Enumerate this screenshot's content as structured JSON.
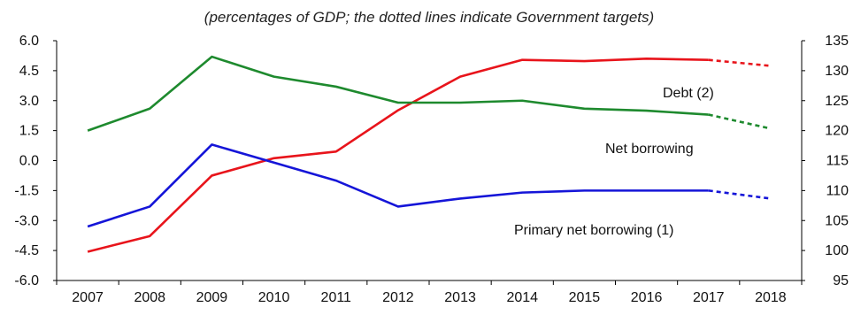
{
  "chart_data": {
    "type": "line",
    "subtitle": "(percentages of GDP; the dotted lines indicate Government targets)",
    "categories": [
      "2007",
      "2008",
      "2009",
      "2010",
      "2011",
      "2012",
      "2013",
      "2014",
      "2015",
      "2016",
      "2017",
      "2018"
    ],
    "y_left": {
      "min": -6.0,
      "max": 6.0,
      "ticks": [
        "6.0",
        "4.5",
        "3.0",
        "1.5",
        "0.0",
        "-1.5",
        "-3.0",
        "-4.5",
        "-6.0"
      ]
    },
    "y_right": {
      "min": 95,
      "max": 135,
      "ticks": [
        "135",
        "130",
        "125",
        "120",
        "115",
        "110",
        "105",
        "100",
        "95"
      ]
    },
    "target_from": "2017",
    "grid": false,
    "series": [
      {
        "name": "Debt (2)",
        "axis": "right",
        "color": "#e8141b",
        "values": [
          99.8,
          102.4,
          112.5,
          115.4,
          116.5,
          123.4,
          129.0,
          131.8,
          131.6,
          132.0,
          131.8,
          130.8
        ]
      },
      {
        "name": "Net borrowing",
        "axis": "left",
        "color": "#1e8a2e",
        "values": [
          1.5,
          2.6,
          5.2,
          4.2,
          3.7,
          2.9,
          2.9,
          3.0,
          2.6,
          2.5,
          2.3,
          1.6
        ]
      },
      {
        "name": "Primary net borrowing (1)",
        "axis": "left",
        "color": "#1515d8",
        "values": [
          -3.3,
          -2.3,
          0.8,
          -0.1,
          -1.0,
          -2.3,
          -1.9,
          -1.6,
          -1.5,
          -1.5,
          -1.5,
          -1.9
        ]
      }
    ]
  }
}
